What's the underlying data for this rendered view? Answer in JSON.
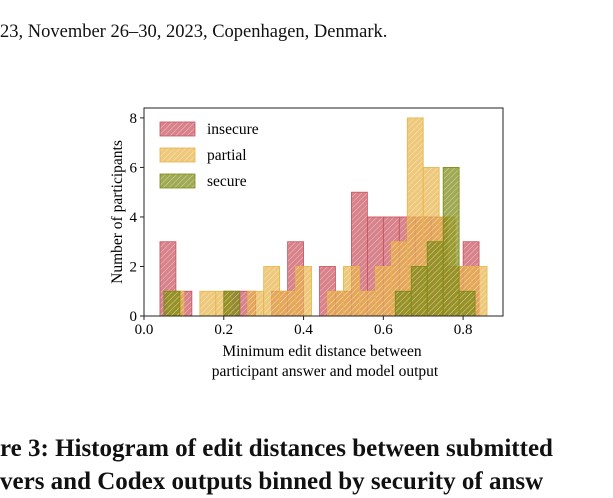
{
  "header": {
    "text": "23, November 26–30, 2023, Copenhagen, Denmark."
  },
  "caption": {
    "line1": "re 3: Histogram of edit distances between submitted",
    "line2": "vers and Codex outputs binned by security of answ"
  },
  "chart_data": {
    "type": "bar",
    "subtype": "overlaid-histogram",
    "xlabel": "Minimum edit distance between\nparticipant answer and model output",
    "ylabel": "Number of participants",
    "xlim": [
      0.0,
      0.9
    ],
    "ylim": [
      0,
      8.4
    ],
    "xticks": [
      "0.0",
      "0.2",
      "0.4",
      "0.6",
      "0.8"
    ],
    "yticks": [
      "0",
      "2",
      "4",
      "6",
      "8"
    ],
    "legend_position": "top-left",
    "grid": false,
    "bin_width": 0.04,
    "series": [
      {
        "name": "insecure",
        "color": "#c9525e",
        "bins": [
          {
            "x": 0.04,
            "y": 3
          },
          {
            "x": 0.08,
            "y": 1
          },
          {
            "x": 0.2,
            "y": 1
          },
          {
            "x": 0.24,
            "y": 1
          },
          {
            "x": 0.32,
            "y": 1
          },
          {
            "x": 0.36,
            "y": 3
          },
          {
            "x": 0.44,
            "y": 2
          },
          {
            "x": 0.48,
            "y": 1
          },
          {
            "x": 0.52,
            "y": 5
          },
          {
            "x": 0.56,
            "y": 4
          },
          {
            "x": 0.6,
            "y": 4
          },
          {
            "x": 0.64,
            "y": 4
          },
          {
            "x": 0.68,
            "y": 4
          },
          {
            "x": 0.72,
            "y": 4
          },
          {
            "x": 0.76,
            "y": 2
          },
          {
            "x": 0.8,
            "y": 3
          }
        ]
      },
      {
        "name": "partial",
        "color": "#e8b44a",
        "bins": [
          {
            "x": 0.06,
            "y": 1
          },
          {
            "x": 0.14,
            "y": 1
          },
          {
            "x": 0.18,
            "y": 1
          },
          {
            "x": 0.26,
            "y": 1
          },
          {
            "x": 0.3,
            "y": 2
          },
          {
            "x": 0.34,
            "y": 1
          },
          {
            "x": 0.38,
            "y": 2
          },
          {
            "x": 0.46,
            "y": 1
          },
          {
            "x": 0.5,
            "y": 2
          },
          {
            "x": 0.54,
            "y": 1
          },
          {
            "x": 0.58,
            "y": 2
          },
          {
            "x": 0.62,
            "y": 3
          },
          {
            "x": 0.66,
            "y": 8
          },
          {
            "x": 0.7,
            "y": 6
          },
          {
            "x": 0.74,
            "y": 4
          },
          {
            "x": 0.78,
            "y": 2
          },
          {
            "x": 0.82,
            "y": 2
          }
        ]
      },
      {
        "name": "secure",
        "color": "#7c8a12",
        "bins": [
          {
            "x": 0.05,
            "y": 1
          },
          {
            "x": 0.2,
            "y": 1
          },
          {
            "x": 0.63,
            "y": 1
          },
          {
            "x": 0.67,
            "y": 2
          },
          {
            "x": 0.71,
            "y": 3
          },
          {
            "x": 0.75,
            "y": 6
          },
          {
            "x": 0.79,
            "y": 1
          }
        ]
      }
    ]
  }
}
